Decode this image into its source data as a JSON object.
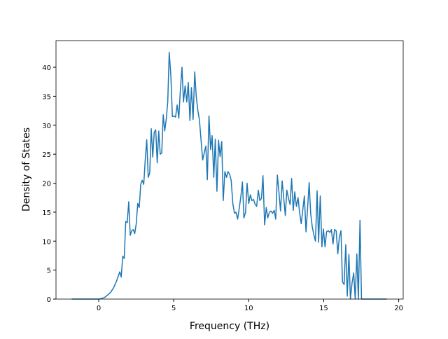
{
  "chart_data": {
    "type": "line",
    "x_label": "Frequency (THz)",
    "y_label": "Density of States",
    "xlim": [
      -2.85,
      20.3
    ],
    "ylim": [
      0,
      44.6
    ],
    "xticks": [
      0,
      5,
      10,
      15,
      20
    ],
    "yticks": [
      0,
      5,
      10,
      15,
      20,
      25,
      30,
      35,
      40
    ],
    "grid": false,
    "series": [
      {
        "color": "#1f77b4",
        "x": [
          -1.8,
          0,
          0.2,
          0.4,
          0.6,
          0.8,
          1.0,
          1.2,
          1.4,
          1.5,
          1.6,
          1.7,
          1.8,
          1.9,
          2.0,
          2.1,
          2.2,
          2.3,
          2.4,
          2.5,
          2.6,
          2.7,
          2.8,
          2.9,
          3.0,
          3.1,
          3.2,
          3.3,
          3.4,
          3.5,
          3.6,
          3.7,
          3.8,
          3.9,
          4.0,
          4.1,
          4.2,
          4.3,
          4.4,
          4.5,
          4.6,
          4.7,
          4.81,
          4.91,
          5.02,
          5.12,
          5.23,
          5.34,
          5.44,
          5.55,
          5.65,
          5.76,
          5.87,
          5.97,
          6.08,
          6.18,
          6.29,
          6.4,
          6.5,
          6.61,
          6.71,
          6.82,
          6.93,
          7.03,
          7.14,
          7.24,
          7.35,
          7.46,
          7.56,
          7.67,
          7.77,
          7.88,
          7.99,
          8.09,
          8.2,
          8.3,
          8.41,
          8.52,
          8.62,
          8.73,
          8.83,
          8.94,
          9.05,
          9.15,
          9.26,
          9.36,
          9.47,
          9.58,
          9.68,
          9.79,
          9.89,
          10.0,
          10.11,
          10.21,
          10.32,
          10.42,
          10.53,
          10.64,
          10.74,
          10.85,
          10.95,
          11.06,
          11.17,
          11.27,
          11.38,
          11.48,
          11.59,
          11.7,
          11.8,
          11.91,
          12.01,
          12.12,
          12.23,
          12.33,
          12.44,
          12.54,
          12.65,
          12.76,
          12.86,
          12.97,
          13.07,
          13.18,
          13.29,
          13.39,
          13.5,
          13.6,
          13.71,
          13.82,
          13.92,
          14.03,
          14.13,
          14.24,
          14.35,
          14.45,
          14.56,
          14.66,
          14.77,
          14.88,
          14.98,
          15.09,
          15.19,
          15.3,
          15.41,
          15.51,
          15.62,
          15.72,
          15.83,
          15.94,
          16.04,
          16.15,
          16.25,
          16.36,
          16.47,
          16.57,
          16.68,
          16.78,
          16.89,
          17.0,
          17.1,
          17.21,
          17.31,
          17.42,
          17.52,
          19.2
        ],
        "values": [
          0,
          0,
          0.1,
          0.3,
          0.7,
          1.2,
          2,
          3.2,
          4.7,
          3.8,
          7.4,
          7,
          13.4,
          13.2,
          16.8,
          11,
          11.8,
          12,
          11.3,
          13,
          16.5,
          15.8,
          19.8,
          20.5,
          19.8,
          24,
          27.5,
          21,
          21.8,
          29.4,
          24.5,
          28.8,
          29.2,
          23.5,
          29,
          25,
          25.2,
          31.8,
          29,
          31,
          34,
          42.6,
          38.5,
          31.5,
          31.6,
          31.4,
          33.5,
          31.2,
          36,
          40,
          34,
          36.8,
          34,
          37.4,
          30.8,
          36.5,
          31,
          39.2,
          35,
          32.5,
          31,
          27.5,
          24,
          25.2,
          26.4,
          20.6,
          31.6,
          25.8,
          28.2,
          21,
          27.6,
          18.6,
          27.4,
          24.6,
          27.2,
          17,
          22,
          21,
          22,
          21.5,
          20.5,
          16.5,
          14.8,
          15,
          13.8,
          15.5,
          17.6,
          20.2,
          14,
          15,
          20,
          16.5,
          18,
          17,
          17.2,
          16.4,
          16,
          18.8,
          17,
          17.4,
          21.3,
          12.8,
          15.8,
          14,
          15,
          15.2,
          14.8,
          15.3,
          13.8,
          21.4,
          18.6,
          15.2,
          20.4,
          17.5,
          14.4,
          18.8,
          17.4,
          16.3,
          20.8,
          15.3,
          18.5,
          16,
          17.5,
          15,
          13,
          15.3,
          17.8,
          11.6,
          15.5,
          20.1,
          14.8,
          12.4,
          11,
          10,
          18.7,
          9.8,
          17.8,
          9,
          12.1,
          9,
          11.6,
          11.8,
          11.5,
          12,
          9.5,
          12,
          11.8,
          7.8,
          10.6,
          11.8,
          3,
          2.5,
          9.4,
          0.5,
          7.7,
          0,
          2.8,
          4.5,
          0,
          7.8,
          0,
          13.6,
          0,
          0
        ]
      }
    ]
  }
}
